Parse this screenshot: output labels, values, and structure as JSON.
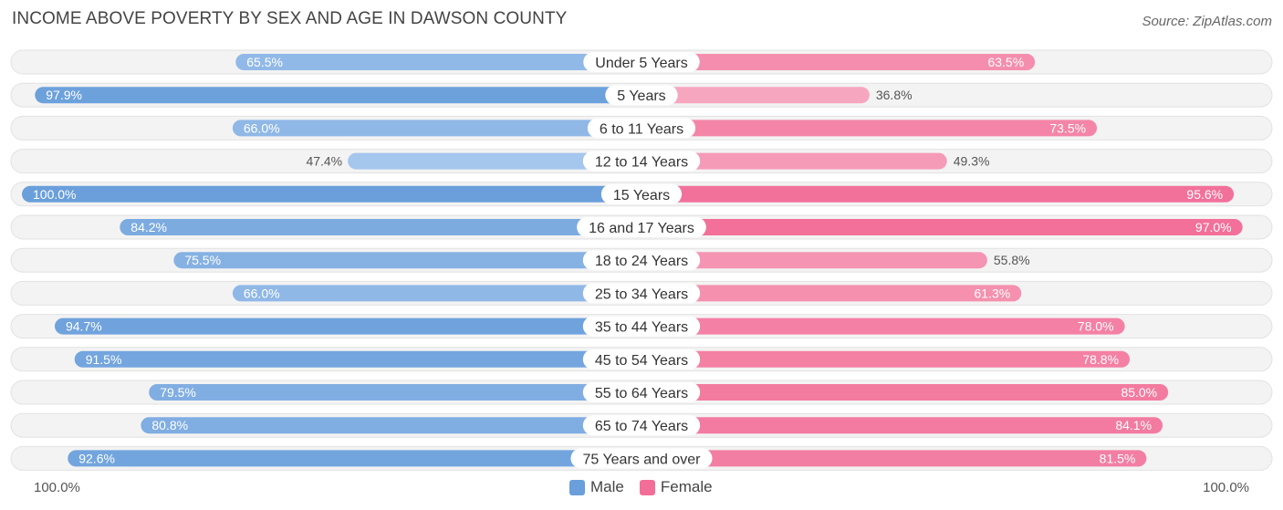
{
  "header": {
    "title": "INCOME ABOVE POVERTY BY SEX AND AGE IN DAWSON COUNTY",
    "source": "Source: ZipAtlas.com"
  },
  "colors": {
    "male_strong": "#6a9fdb",
    "male_light": "#a8c8ee",
    "female_strong": "#f26d97",
    "female_light": "#f7a8c0",
    "track": "#f1f1f1"
  },
  "legend": {
    "male": "Male",
    "female": "Female"
  },
  "axis": {
    "left_max_label": "100.0%",
    "right_max_label": "100.0%"
  },
  "chart_data": {
    "type": "bar",
    "orientation": "horizontal-diverging",
    "title": "INCOME ABOVE POVERTY BY SEX AND AGE IN DAWSON COUNTY",
    "xlim": [
      0,
      100
    ],
    "categories": [
      "Under 5 Years",
      "5 Years",
      "6 to 11 Years",
      "12 to 14 Years",
      "15 Years",
      "16 and 17 Years",
      "18 to 24 Years",
      "25 to 34 Years",
      "35 to 44 Years",
      "45 to 54 Years",
      "55 to 64 Years",
      "65 to 74 Years",
      "75 Years and over"
    ],
    "series": [
      {
        "name": "Male",
        "values": [
          65.5,
          97.9,
          66.0,
          47.4,
          100.0,
          84.2,
          75.5,
          66.0,
          94.7,
          91.5,
          79.5,
          80.8,
          92.6
        ],
        "labels": [
          "65.5%",
          "97.9%",
          "66.0%",
          "47.4%",
          "100.0%",
          "84.2%",
          "75.5%",
          "66.0%",
          "94.7%",
          "91.5%",
          "79.5%",
          "80.8%",
          "92.6%"
        ]
      },
      {
        "name": "Female",
        "values": [
          63.5,
          36.8,
          73.5,
          49.3,
          95.6,
          97.0,
          55.8,
          61.3,
          78.0,
          78.8,
          85.0,
          84.1,
          81.5
        ],
        "labels": [
          "63.5%",
          "36.8%",
          "73.5%",
          "49.3%",
          "95.6%",
          "97.0%",
          "55.8%",
          "61.3%",
          "78.0%",
          "78.8%",
          "85.0%",
          "84.1%",
          "81.5%"
        ]
      }
    ]
  }
}
